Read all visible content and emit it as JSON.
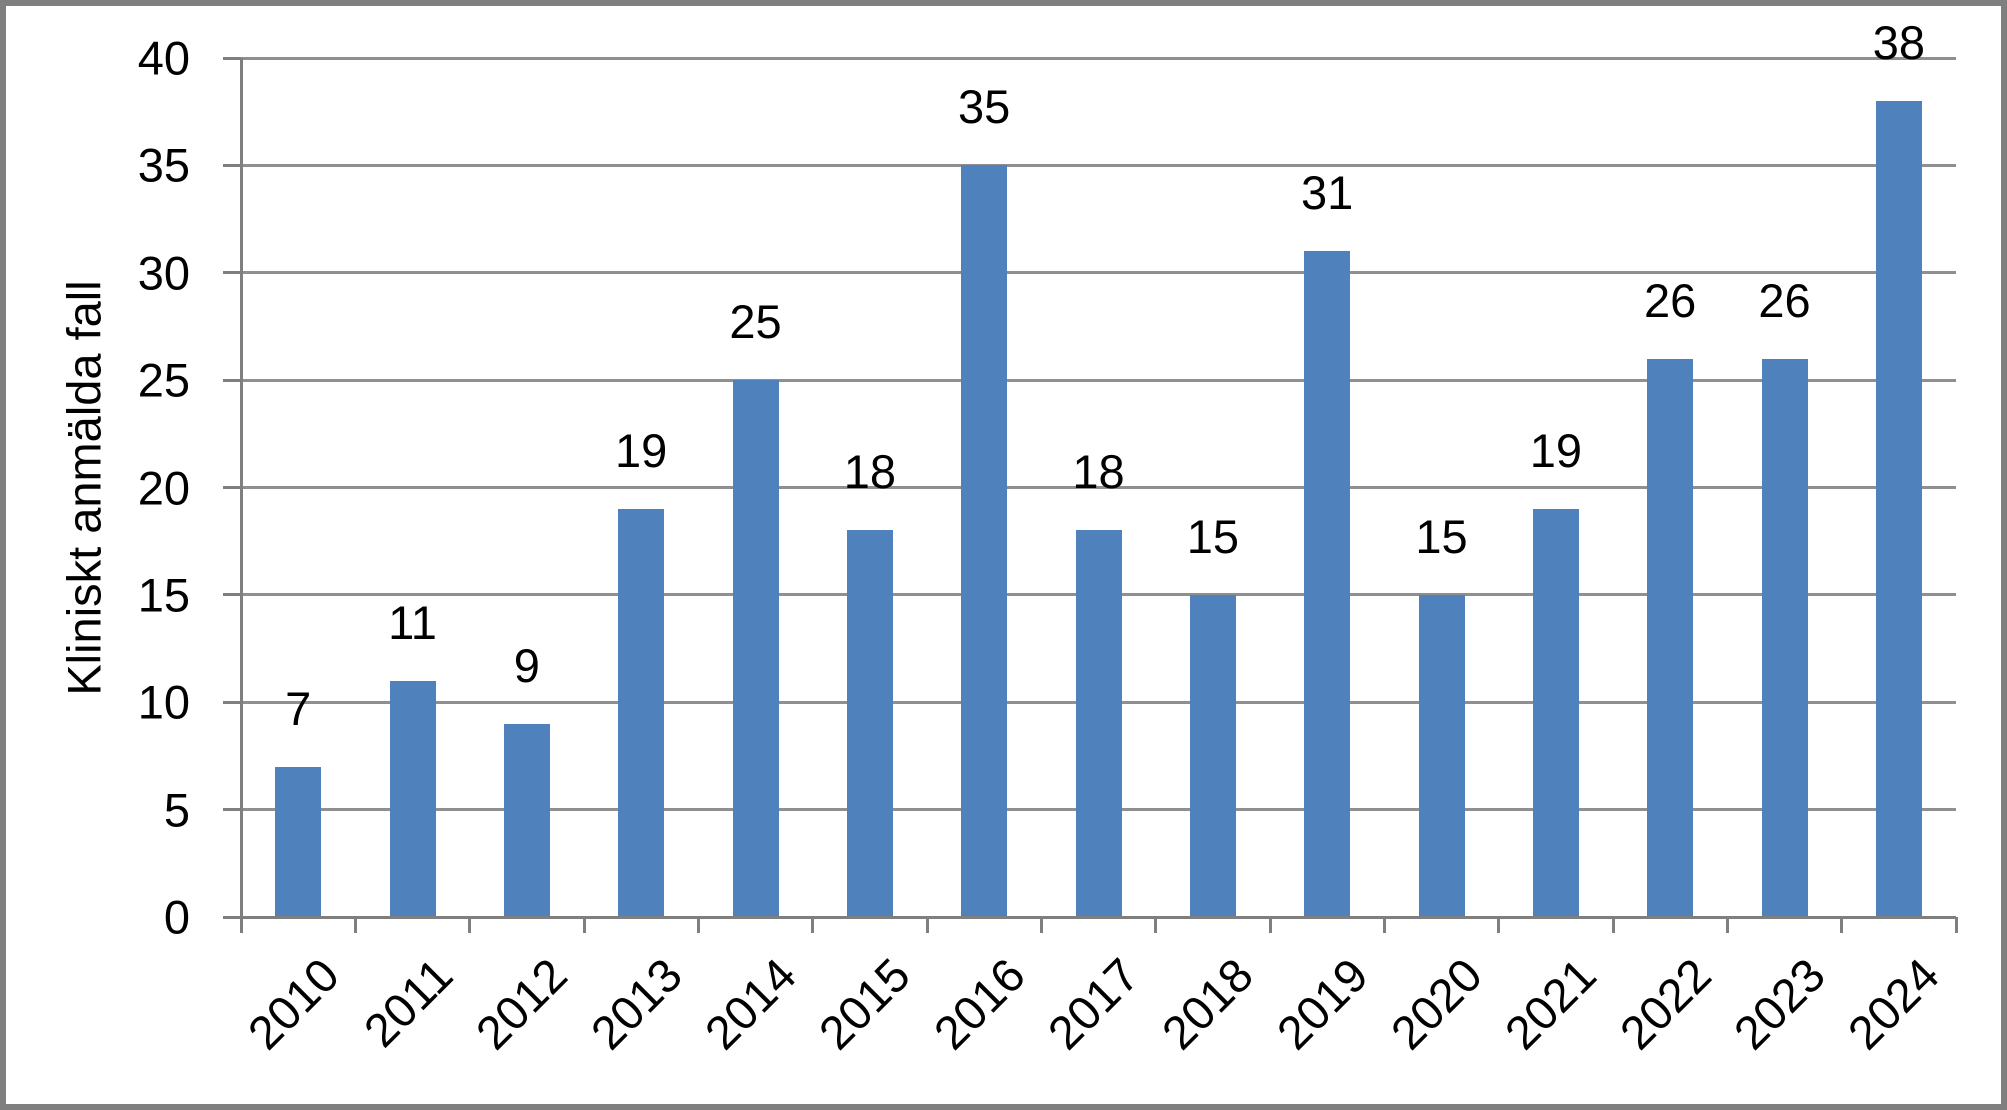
{
  "chart_data": {
    "type": "bar",
    "title": "",
    "xlabel": "",
    "ylabel": "Kliniskt anmälda fall",
    "categories": [
      "2010",
      "2011",
      "2012",
      "2013",
      "2014",
      "2015",
      "2016",
      "2017",
      "2018",
      "2019",
      "2020",
      "2021",
      "2022",
      "2023",
      "2024"
    ],
    "values": [
      7,
      11,
      9,
      19,
      25,
      18,
      35,
      18,
      15,
      31,
      15,
      19,
      26,
      26,
      38
    ],
    "data_labels_shown": true,
    "ylim": [
      0,
      40
    ],
    "yticks": [
      0,
      5,
      10,
      15,
      20,
      25,
      30,
      35,
      40
    ],
    "grid": "horizontal",
    "legend_position": "none",
    "colors": {
      "bar_fill": "#4F81BD",
      "gridline": "#8F8F8F",
      "axis_line": "#7F7F7F",
      "outer_border": "#7F7F7F",
      "text": "#000000",
      "background": "#FFFFFF"
    }
  }
}
